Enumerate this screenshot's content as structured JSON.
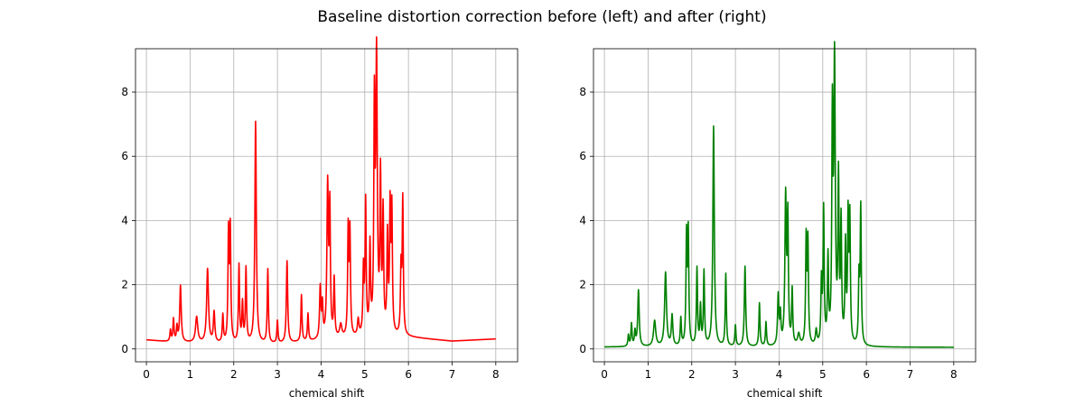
{
  "figure": {
    "title": "Baseline distortion correction before (left) and after (right)"
  },
  "chart_data": [
    {
      "type": "line",
      "xlabel": "chemical shift",
      "ylabel": "",
      "xlim": [
        -0.25,
        8.5
      ],
      "ylim": [
        -0.4,
        9.35
      ],
      "xticks": [
        0,
        1,
        2,
        3,
        4,
        5,
        6,
        7,
        8
      ],
      "yticks": [
        0,
        2,
        4,
        6,
        8
      ],
      "grid": true,
      "series": [
        {
          "color": "#ff0000",
          "baseline": [
            [
              0,
              0.28
            ],
            [
              0.5,
              0.22
            ],
            [
              1.5,
              0.16
            ],
            [
              3.0,
              0.15
            ],
            [
              4.0,
              0.25
            ],
            [
              5.0,
              0.35
            ],
            [
              6.0,
              0.36
            ],
            [
              7.0,
              0.24
            ],
            [
              8.0,
              0.31
            ]
          ],
          "peaks": [
            [
              0.55,
              0.35,
              0.015
            ],
            [
              0.62,
              0.7,
              0.015
            ],
            [
              0.7,
              0.45,
              0.015
            ],
            [
              0.78,
              1.75,
              0.02
            ],
            [
              1.15,
              0.8,
              0.03
            ],
            [
              1.4,
              2.3,
              0.025
            ],
            [
              1.55,
              0.95,
              0.02
            ],
            [
              1.75,
              0.85,
              0.015
            ],
            [
              1.88,
              3.35,
              0.015
            ],
            [
              1.92,
              3.45,
              0.015
            ],
            [
              2.12,
              2.4,
              0.015
            ],
            [
              2.2,
              1.2,
              0.015
            ],
            [
              2.28,
              2.3,
              0.015
            ],
            [
              2.5,
              6.9,
              0.02
            ],
            [
              2.78,
              2.3,
              0.015
            ],
            [
              3.0,
              0.7,
              0.015
            ],
            [
              3.22,
              2.55,
              0.018
            ],
            [
              3.55,
              1.45,
              0.015
            ],
            [
              3.7,
              0.85,
              0.015
            ],
            [
              3.98,
              1.6,
              0.018
            ],
            [
              4.03,
              1.0,
              0.015
            ],
            [
              4.15,
              4.75,
              0.02
            ],
            [
              4.2,
              3.9,
              0.015
            ],
            [
              4.3,
              1.8,
              0.015
            ],
            [
              4.45,
              0.4,
              0.03
            ],
            [
              4.62,
              3.3,
              0.015
            ],
            [
              4.66,
              3.2,
              0.015
            ],
            [
              4.85,
              0.5,
              0.02
            ],
            [
              4.97,
              2.0,
              0.015
            ],
            [
              5.02,
              4.1,
              0.015
            ],
            [
              5.12,
              2.7,
              0.015
            ],
            [
              5.22,
              6.8,
              0.015
            ],
            [
              5.27,
              8.55,
              0.02
            ],
            [
              5.36,
              4.8,
              0.015
            ],
            [
              5.42,
              3.7,
              0.015
            ],
            [
              5.52,
              3.0,
              0.015
            ],
            [
              5.58,
              3.8,
              0.015
            ],
            [
              5.62,
              3.8,
              0.015
            ],
            [
              5.83,
              2.0,
              0.015
            ],
            [
              5.87,
              4.2,
              0.015
            ]
          ]
        }
      ]
    },
    {
      "type": "line",
      "xlabel": "chemical shift",
      "ylabel": "",
      "xlim": [
        -0.25,
        8.5
      ],
      "ylim": [
        -0.4,
        9.35
      ],
      "xticks": [
        0,
        1,
        2,
        3,
        4,
        5,
        6,
        7,
        8
      ],
      "yticks": [
        0,
        2,
        4,
        6,
        8
      ],
      "grid": true,
      "series": [
        {
          "color": "#008000",
          "baseline": [
            [
              0,
              0.06
            ],
            [
              8.0,
              0.05
            ]
          ],
          "peaks": [
            [
              0.55,
              0.35,
              0.015
            ],
            [
              0.62,
              0.7,
              0.015
            ],
            [
              0.7,
              0.45,
              0.015
            ],
            [
              0.78,
              1.75,
              0.02
            ],
            [
              1.15,
              0.8,
              0.03
            ],
            [
              1.4,
              2.3,
              0.025
            ],
            [
              1.55,
              0.95,
              0.02
            ],
            [
              1.75,
              0.85,
              0.015
            ],
            [
              1.88,
              3.35,
              0.015
            ],
            [
              1.92,
              3.45,
              0.015
            ],
            [
              2.12,
              2.4,
              0.015
            ],
            [
              2.2,
              1.2,
              0.015
            ],
            [
              2.28,
              2.3,
              0.015
            ],
            [
              2.5,
              6.85,
              0.02
            ],
            [
              2.78,
              2.25,
              0.015
            ],
            [
              3.0,
              0.65,
              0.015
            ],
            [
              3.22,
              2.5,
              0.018
            ],
            [
              3.55,
              1.35,
              0.015
            ],
            [
              3.7,
              0.75,
              0.015
            ],
            [
              3.98,
              1.55,
              0.018
            ],
            [
              4.03,
              0.9,
              0.015
            ],
            [
              4.15,
              4.6,
              0.02
            ],
            [
              4.2,
              3.8,
              0.015
            ],
            [
              4.3,
              1.7,
              0.015
            ],
            [
              4.45,
              0.35,
              0.03
            ],
            [
              4.62,
              3.25,
              0.015
            ],
            [
              4.66,
              3.15,
              0.015
            ],
            [
              4.85,
              0.45,
              0.02
            ],
            [
              4.97,
              1.9,
              0.015
            ],
            [
              5.02,
              4.15,
              0.015
            ],
            [
              5.12,
              2.6,
              0.015
            ],
            [
              5.22,
              6.8,
              0.015
            ],
            [
              5.27,
              8.7,
              0.02
            ],
            [
              5.36,
              5.0,
              0.015
            ],
            [
              5.42,
              3.7,
              0.015
            ],
            [
              5.52,
              3.0,
              0.015
            ],
            [
              5.58,
              3.8,
              0.015
            ],
            [
              5.62,
              3.8,
              0.015
            ],
            [
              5.83,
              2.0,
              0.015
            ],
            [
              5.87,
              4.25,
              0.015
            ]
          ]
        }
      ]
    }
  ]
}
